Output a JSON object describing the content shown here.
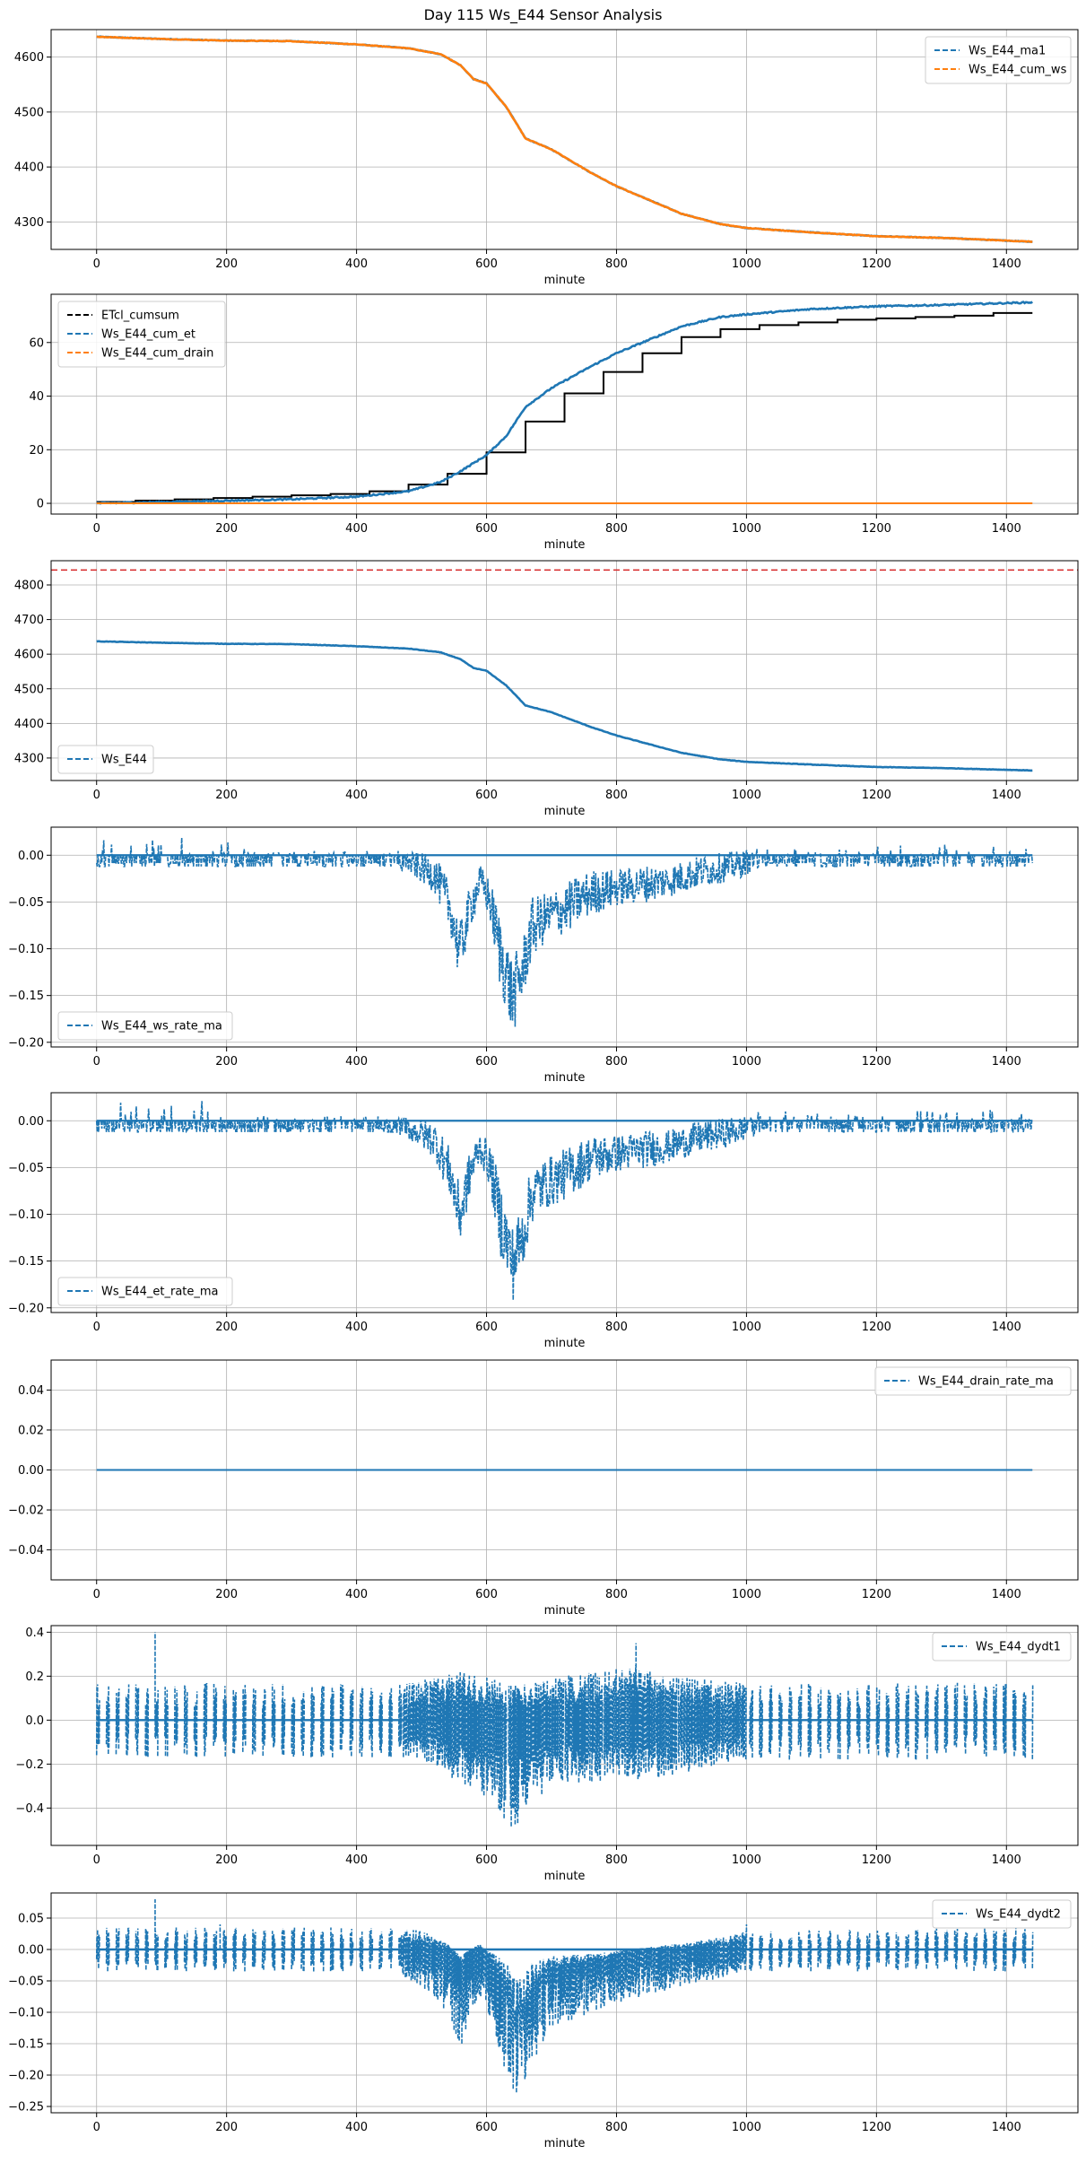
{
  "figure": {
    "title": "Day 115 Ws_E44 Sensor Analysis",
    "colors": {
      "blue": "#1f77b4",
      "orange": "#ff7f0e",
      "black": "#000000",
      "red": "#d62728",
      "grid": "#b0b0b0"
    }
  },
  "chart_data": [
    {
      "type": "line",
      "xlabel": "minute",
      "xlim": [
        -70,
        1510
      ],
      "xticks": [
        0,
        200,
        400,
        600,
        800,
        1000,
        1200,
        1400
      ],
      "ylim": [
        4250,
        4650
      ],
      "yticks": [
        4300,
        4400,
        4500,
        4600
      ],
      "ytick_labels": [
        "4300",
        "4400",
        "4500",
        "4600"
      ],
      "legend_loc": "top-right",
      "series": [
        {
          "name": "Ws_E44_ma1",
          "color": "#1f77b4",
          "noise": 0.6,
          "x": [
            0,
            100,
            200,
            300,
            400,
            480,
            530,
            560,
            580,
            600,
            630,
            660,
            700,
            760,
            800,
            860,
            900,
            960,
            1000,
            1100,
            1200,
            1300,
            1440
          ],
          "y": [
            4637,
            4633,
            4630,
            4629,
            4623,
            4616,
            4605,
            4585,
            4560,
            4552,
            4510,
            4452,
            4432,
            4390,
            4365,
            4335,
            4315,
            4296,
            4289,
            4281,
            4274,
            4271,
            4264
          ]
        },
        {
          "name": "Ws_E44_cum_ws",
          "color": "#ff7f0e",
          "noise": 0.6,
          "x": [
            0,
            100,
            200,
            300,
            400,
            480,
            530,
            560,
            580,
            600,
            630,
            660,
            700,
            760,
            800,
            860,
            900,
            960,
            1000,
            1100,
            1200,
            1300,
            1440
          ],
          "y": [
            4637,
            4633,
            4630,
            4629,
            4623,
            4616,
            4605,
            4585,
            4560,
            4552,
            4510,
            4452,
            4432,
            4390,
            4365,
            4335,
            4315,
            4296,
            4289,
            4281,
            4274,
            4271,
            4264
          ]
        }
      ]
    },
    {
      "type": "line",
      "xlabel": "minute",
      "xlim": [
        -70,
        1510
      ],
      "xticks": [
        0,
        200,
        400,
        600,
        800,
        1000,
        1200,
        1400
      ],
      "ylim": [
        -4,
        78
      ],
      "yticks": [
        0,
        20,
        40,
        60
      ],
      "ytick_labels": [
        "0",
        "20",
        "40",
        "60"
      ],
      "legend_loc": "top-left",
      "series": [
        {
          "name": "ETcl_cumsum",
          "color": "#000000",
          "step": true,
          "x": [
            0,
            60,
            120,
            180,
            240,
            300,
            360,
            420,
            480,
            540,
            600,
            660,
            720,
            780,
            840,
            900,
            960,
            1020,
            1080,
            1140,
            1200,
            1260,
            1320,
            1380,
            1440
          ],
          "y": [
            0.5,
            1,
            1.5,
            2,
            2.5,
            3,
            3.5,
            4.5,
            7,
            11,
            19,
            30.5,
            41,
            49,
            56,
            62,
            65,
            66.5,
            67.5,
            68.5,
            69,
            69.5,
            70,
            71,
            71
          ]
        },
        {
          "name": "Ws_E44_cum_et",
          "color": "#1f77b4",
          "noise": 0.25,
          "x": [
            0,
            100,
            200,
            300,
            400,
            480,
            530,
            560,
            580,
            600,
            630,
            660,
            700,
            760,
            800,
            860,
            900,
            960,
            1000,
            1100,
            1200,
            1300,
            1440
          ],
          "y": [
            0,
            0.5,
            1,
            1.5,
            2.5,
            4.5,
            8,
            12,
            15,
            18,
            25,
            36,
            43,
            51,
            56,
            62,
            66,
            69.5,
            70.5,
            72.5,
            73.5,
            74,
            75
          ]
        },
        {
          "name": "Ws_E44_cum_drain",
          "color": "#ff7f0e",
          "x": [
            0,
            1440
          ],
          "y": [
            0,
            0
          ]
        }
      ]
    },
    {
      "type": "line",
      "xlabel": "minute",
      "xlim": [
        -70,
        1510
      ],
      "xticks": [
        0,
        200,
        400,
        600,
        800,
        1000,
        1200,
        1400
      ],
      "ylim": [
        4235,
        4870
      ],
      "yticks": [
        4300,
        4400,
        4500,
        4600,
        4700,
        4800
      ],
      "ytick_labels": [
        "4300",
        "4400",
        "4500",
        "4600",
        "4700",
        "4800"
      ],
      "legend_loc": "bottom-left",
      "hline": {
        "y": 4843,
        "color": "#d62728"
      },
      "series": [
        {
          "name": "Ws_E44",
          "color": "#1f77b4",
          "noise": 0.6,
          "x": [
            0,
            100,
            200,
            300,
            400,
            480,
            530,
            560,
            580,
            600,
            630,
            660,
            700,
            760,
            800,
            860,
            900,
            960,
            1000,
            1100,
            1200,
            1300,
            1440
          ],
          "y": [
            4637,
            4633,
            4630,
            4629,
            4623,
            4616,
            4605,
            4585,
            4560,
            4552,
            4510,
            4452,
            4432,
            4390,
            4365,
            4335,
            4315,
            4296,
            4289,
            4281,
            4274,
            4271,
            4264
          ]
        }
      ]
    },
    {
      "type": "line",
      "xlabel": "minute",
      "xlim": [
        -70,
        1510
      ],
      "xticks": [
        0,
        200,
        400,
        600,
        800,
        1000,
        1200,
        1400
      ],
      "ylim": [
        -0.205,
        0.03
      ],
      "yticks": [
        -0.2,
        -0.15,
        -0.1,
        -0.05,
        0.0
      ],
      "ytick_labels": [
        "−0.20",
        "−0.15",
        "−0.10",
        "−0.05",
        "0.00"
      ],
      "legend_loc": "bottom-left",
      "series": [
        {
          "name": "Ws_E44_ws_rate_ma",
          "color": "#1f77b4",
          "dense": true,
          "fill": true,
          "zeroBias": true,
          "x": [
            0,
            180,
            260,
            460,
            490,
            520,
            545,
            555,
            560,
            575,
            590,
            605,
            620,
            640,
            655,
            670,
            690,
            720,
            760,
            800,
            850,
            880,
            930,
            990,
            1020,
            1440
          ],
          "lo": [
            -0.012,
            -0.012,
            -0.012,
            -0.012,
            -0.025,
            -0.04,
            -0.085,
            -0.125,
            -0.13,
            -0.08,
            -0.045,
            -0.07,
            -0.14,
            -0.195,
            -0.16,
            -0.11,
            -0.095,
            -0.085,
            -0.065,
            -0.055,
            -0.05,
            -0.045,
            -0.035,
            -0.025,
            -0.012,
            -0.012
          ],
          "hi": [
            0.022,
            0.022,
            0.005,
            0.005,
            0.003,
            0.0,
            -0.03,
            -0.06,
            -0.07,
            -0.03,
            -0.01,
            -0.025,
            -0.06,
            -0.11,
            -0.09,
            -0.045,
            -0.04,
            -0.03,
            -0.015,
            -0.015,
            -0.01,
            -0.01,
            0.0,
            0.005,
            0.01,
            0.012
          ]
        }
      ]
    },
    {
      "type": "line",
      "xlabel": "minute",
      "xlim": [
        -70,
        1510
      ],
      "xticks": [
        0,
        200,
        400,
        600,
        800,
        1000,
        1200,
        1400
      ],
      "ylim": [
        -0.205,
        0.03
      ],
      "yticks": [
        -0.2,
        -0.15,
        -0.1,
        -0.05,
        0.0
      ],
      "ytick_labels": [
        "−0.20",
        "−0.15",
        "−0.10",
        "−0.05",
        "0.00"
      ],
      "legend_loc": "bottom-left",
      "series": [
        {
          "name": "Ws_E44_et_rate_ma",
          "color": "#1f77b4",
          "dense": true,
          "fill": true,
          "zeroBias": true,
          "x": [
            0,
            180,
            260,
            460,
            490,
            520,
            545,
            555,
            560,
            575,
            590,
            605,
            620,
            640,
            655,
            670,
            690,
            720,
            760,
            800,
            850,
            880,
            930,
            990,
            1020,
            1440
          ],
          "lo": [
            -0.012,
            -0.012,
            -0.012,
            -0.012,
            -0.025,
            -0.04,
            -0.085,
            -0.125,
            -0.13,
            -0.08,
            -0.045,
            -0.07,
            -0.14,
            -0.195,
            -0.16,
            -0.11,
            -0.095,
            -0.085,
            -0.065,
            -0.055,
            -0.05,
            -0.045,
            -0.035,
            -0.025,
            -0.012,
            -0.012
          ],
          "hi": [
            0.022,
            0.022,
            0.005,
            0.005,
            0.003,
            0.0,
            -0.03,
            -0.06,
            -0.07,
            -0.03,
            -0.01,
            -0.025,
            -0.06,
            -0.11,
            -0.09,
            -0.045,
            -0.04,
            -0.03,
            -0.015,
            -0.015,
            -0.01,
            -0.01,
            0.0,
            0.005,
            0.01,
            0.012
          ]
        }
      ]
    },
    {
      "type": "line",
      "xlabel": "minute",
      "xlim": [
        -70,
        1510
      ],
      "xticks": [
        0,
        200,
        400,
        600,
        800,
        1000,
        1200,
        1400
      ],
      "ylim": [
        -0.055,
        0.055
      ],
      "yticks": [
        -0.04,
        -0.02,
        0.0,
        0.02,
        0.04
      ],
      "ytick_labels": [
        "−0.04",
        "−0.02",
        "0.00",
        "0.02",
        "0.04"
      ],
      "legend_loc": "top-right",
      "series": [
        {
          "name": "Ws_E44_drain_rate_ma",
          "color": "#1f77b4",
          "x": [
            0,
            1440
          ],
          "y": [
            0,
            0
          ]
        }
      ]
    },
    {
      "type": "line",
      "xlabel": "minute",
      "xlim": [
        -70,
        1510
      ],
      "xticks": [
        0,
        200,
        400,
        600,
        800,
        1000,
        1200,
        1400
      ],
      "ylim": [
        -0.57,
        0.43
      ],
      "yticks": [
        -0.4,
        -0.2,
        0.0,
        0.2,
        0.4
      ],
      "ytick_labels": [
        "−0.4",
        "−0.2",
        "0.0",
        "0.2",
        "0.4"
      ],
      "legend_loc": "top-right",
      "series": [
        {
          "name": "Ws_E44_dydt1",
          "color": "#1f77b4",
          "spiky": true,
          "burstEvery": 15,
          "x": [
            0,
            480,
            530,
            560,
            600,
            640,
            660,
            700,
            760,
            830,
            880,
            960,
            1000,
            1440
          ],
          "lo": [
            -0.17,
            -0.17,
            -0.22,
            -0.3,
            -0.35,
            -0.52,
            -0.4,
            -0.3,
            -0.28,
            -0.28,
            -0.26,
            -0.2,
            -0.18,
            -0.18
          ],
          "hi": [
            0.17,
            0.17,
            0.2,
            0.22,
            0.2,
            0.17,
            0.17,
            0.2,
            0.22,
            0.25,
            0.2,
            0.18,
            0.17,
            0.17
          ],
          "spikes": [
            [
              90,
              0.4
            ],
            [
              830,
              0.35
            ]
          ]
        }
      ]
    },
    {
      "type": "line",
      "xlabel": "minute",
      "xlim": [
        -70,
        1510
      ],
      "xticks": [
        0,
        200,
        400,
        600,
        800,
        1000,
        1200,
        1400
      ],
      "ylim": [
        -0.26,
        0.09
      ],
      "yticks": [
        -0.25,
        -0.2,
        -0.15,
        -0.1,
        -0.05,
        0.0,
        0.05
      ],
      "ytick_labels": [
        "−0.25",
        "−0.20",
        "−0.15",
        "−0.10",
        "−0.05",
        "0.00",
        "0.05"
      ],
      "legend_loc": "top-right",
      "series": [
        {
          "name": "Ws_E44_dydt2",
          "color": "#1f77b4",
          "spiky": true,
          "burstEvery": 15,
          "x": [
            0,
            460,
            500,
            540,
            560,
            575,
            590,
            610,
            630,
            650,
            670,
            700,
            760,
            820,
            900,
            960,
            1000,
            1440
          ],
          "lo": [
            -0.035,
            -0.035,
            -0.06,
            -0.1,
            -0.16,
            -0.1,
            -0.08,
            -0.12,
            -0.2,
            -0.24,
            -0.18,
            -0.13,
            -0.1,
            -0.08,
            -0.06,
            -0.045,
            -0.035,
            -0.035
          ],
          "hi": [
            0.035,
            0.035,
            0.03,
            0.01,
            -0.02,
            0.0,
            0.01,
            -0.02,
            -0.06,
            -0.12,
            -0.06,
            -0.03,
            -0.02,
            0.0,
            0.01,
            0.02,
            0.03,
            0.035
          ],
          "spikes": [
            [
              90,
              0.08
            ],
            [
              190,
              0.04
            ],
            [
              1000,
              0.04
            ]
          ]
        }
      ]
    }
  ]
}
